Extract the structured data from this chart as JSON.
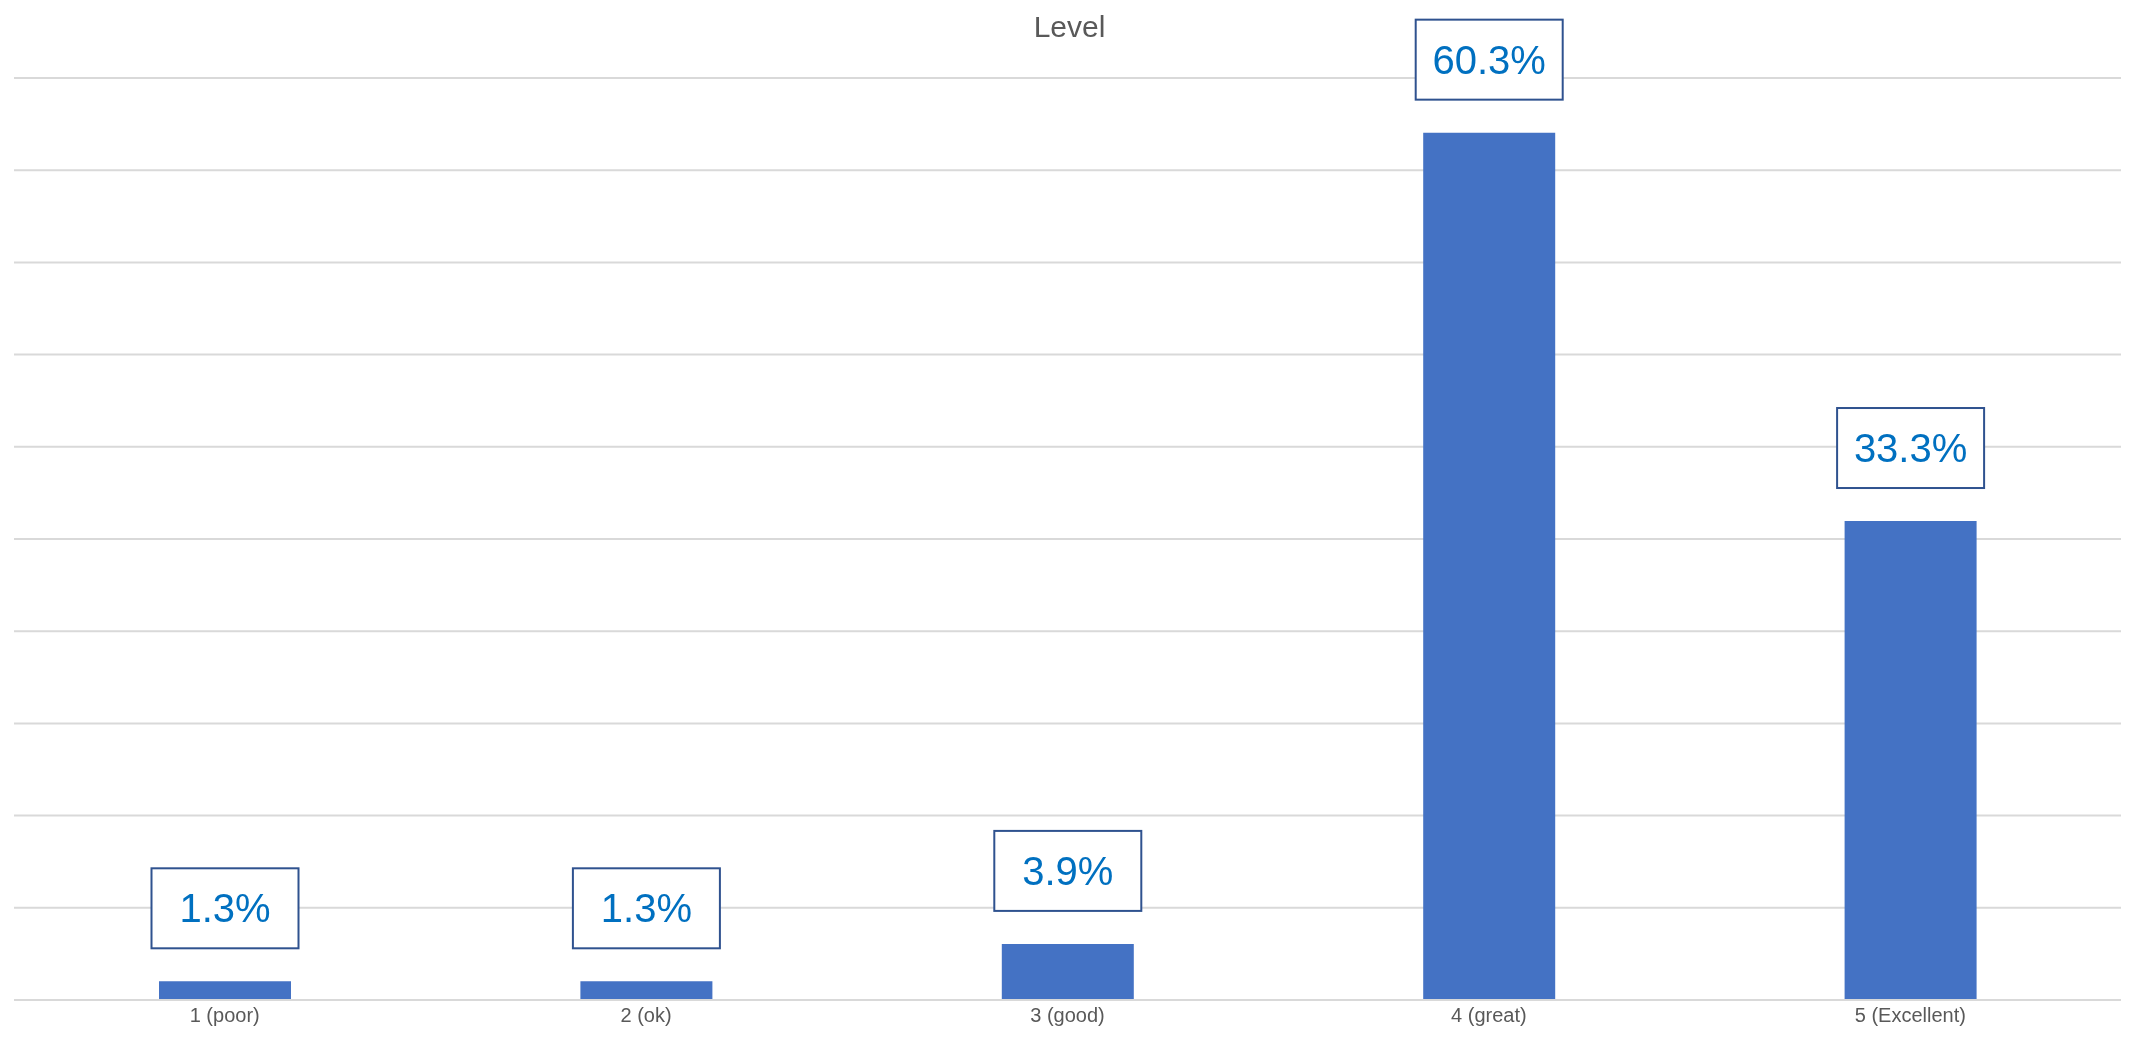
{
  "chart_data": {
    "type": "bar",
    "title": "Level",
    "categories": [
      "1 (poor)",
      "2 (ok)",
      "3 (good)",
      "4 (great)",
      "5 (Excellent)"
    ],
    "values": [
      1.3,
      1.3,
      3.9,
      60.3,
      33.3
    ],
    "value_labels": [
      "1.3%",
      "1.3%",
      "3.9%",
      "60.3%",
      "33.3%"
    ],
    "color": "#4472c4",
    "ylim": [
      0,
      64.1
    ],
    "yticks": [
      {
        "value": 0,
        "label": null
      },
      {
        "value": 6.41,
        "label": null
      },
      {
        "value": 12.82,
        "label": null
      },
      {
        "value": 19.23,
        "label": null
      },
      {
        "value": 25.64,
        "label": null
      },
      {
        "value": 32.05,
        "label": null
      },
      {
        "value": 38.46,
        "label": null
      },
      {
        "value": 44.87,
        "label": null
      },
      {
        "value": 51.28,
        "label": null
      },
      {
        "value": 57.69,
        "label": null
      },
      {
        "value": 64.1,
        "label": null
      }
    ],
    "grid": "y",
    "tick_labels": "x",
    "legend": false
  }
}
